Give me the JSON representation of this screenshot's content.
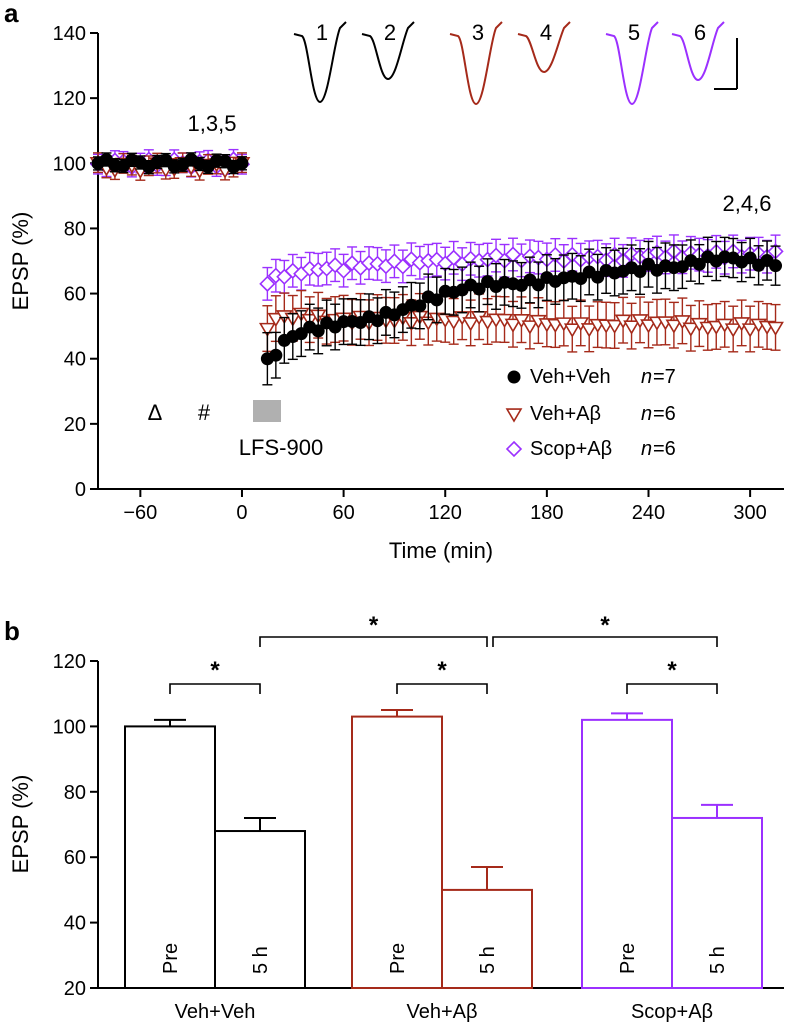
{
  "colors": {
    "vehveh": "#000000",
    "vehab": "#a52a1a",
    "scopab": "#9b30ff",
    "lfs_box": "#b0b0b0"
  },
  "chart_data": [
    {
      "id": "a",
      "type": "scatter",
      "panel_label": "a",
      "xlabel": "Time (min)",
      "ylabel": "EPSP (%)",
      "xlim": [
        -85,
        320
      ],
      "ylim": [
        0,
        140
      ],
      "xticks": [
        -60,
        0,
        60,
        120,
        180,
        240,
        300
      ],
      "xtick_labels": [
        "−60",
        "0",
        "60",
        "120",
        "180",
        "240",
        "300"
      ],
      "yticks": [
        0,
        20,
        40,
        60,
        80,
        100,
        120,
        140
      ],
      "ytick_labels": [
        "0",
        "20",
        "40",
        "60",
        "80",
        "100",
        "120",
        "140"
      ],
      "annotations": {
        "pre_traces": "1,3,5",
        "post_traces": "2,4,6",
        "lfs_label": "LFS-900",
        "delta": "Δ",
        "hash": "#",
        "trace_numbers": [
          "1",
          "2",
          "3",
          "4",
          "5",
          "6"
        ]
      },
      "legend": [
        {
          "label": "Veh+Veh",
          "n": "n",
          "n_value": "=7",
          "marker": "circle"
        },
        {
          "label": "Veh+Aβ",
          "n": "n",
          "n_value": "=6",
          "marker": "triangle-down"
        },
        {
          "label": "Scop+Aβ",
          "n": "n",
          "n_value": "=6",
          "marker": "diamond"
        }
      ],
      "series": [
        {
          "name": "Veh+Veh",
          "marker": "circle",
          "pre": {
            "t_start": -85,
            "t_end": 0,
            "mean": 100,
            "err": 2
          },
          "post_t": [
            15,
            20,
            25,
            30,
            35,
            40,
            50,
            60,
            75,
            90,
            105,
            120,
            135,
            150,
            165,
            180,
            195,
            210,
            225,
            240,
            255,
            270,
            285,
            300,
            315
          ],
          "post_v": [
            39,
            42,
            45,
            47,
            48,
            49,
            50,
            51,
            52,
            54,
            57,
            60,
            62,
            63,
            63,
            64,
            65,
            66,
            67,
            68,
            68,
            70,
            71,
            70,
            69
          ],
          "post_err": [
            8,
            7,
            7,
            7,
            7,
            7,
            7,
            7,
            7,
            7,
            7,
            7,
            7,
            7,
            7,
            7,
            7,
            7,
            7,
            7,
            7,
            6,
            6,
            6,
            6
          ]
        },
        {
          "name": "Veh+Aβ",
          "marker": "triangle-down",
          "pre": {
            "t_start": -85,
            "t_end": 0,
            "mean": 99,
            "err": 3
          },
          "post_t": [
            15,
            20,
            25,
            30,
            35,
            40,
            50,
            60,
            75,
            90,
            105,
            120,
            135,
            150,
            165,
            180,
            195,
            210,
            225,
            240,
            255,
            270,
            285,
            300,
            315
          ],
          "post_v": [
            50,
            52,
            53,
            53,
            53,
            53,
            52,
            52,
            52,
            52,
            52,
            52,
            52,
            52,
            51,
            51,
            50,
            50,
            51,
            51,
            51,
            50,
            50,
            50,
            50
          ],
          "post_err": [
            7,
            7,
            7,
            7,
            7,
            7,
            7,
            7,
            7,
            7,
            7,
            7,
            7,
            7,
            7,
            7,
            7,
            7,
            7,
            7,
            7,
            7,
            7,
            7,
            7
          ]
        },
        {
          "name": "Scop+Aβ",
          "marker": "diamond",
          "pre": {
            "t_start": -85,
            "t_end": 0,
            "mean": 100,
            "err": 3
          },
          "post_t": [
            15,
            20,
            25,
            30,
            35,
            40,
            50,
            60,
            75,
            90,
            105,
            120,
            135,
            150,
            165,
            180,
            195,
            210,
            225,
            240,
            255,
            270,
            285,
            300,
            315
          ],
          "post_v": [
            63,
            65,
            66,
            66,
            67,
            67,
            68,
            68,
            69,
            69,
            70,
            70,
            70,
            71,
            71,
            71,
            71,
            71,
            71,
            72,
            72,
            72,
            72,
            72,
            72
          ],
          "post_err": [
            5,
            5,
            5,
            5,
            5,
            5,
            5,
            5,
            5,
            5,
            5,
            5,
            5,
            5,
            5,
            5,
            5,
            5,
            5,
            5,
            5,
            5,
            5,
            5,
            5
          ]
        }
      ]
    },
    {
      "id": "b",
      "type": "bar",
      "panel_label": "b",
      "ylabel": "EPSP (%)",
      "ylim": [
        20,
        120
      ],
      "yticks": [
        20,
        40,
        60,
        80,
        100,
        120
      ],
      "ytick_labels": [
        "20",
        "40",
        "60",
        "80",
        "100",
        "120"
      ],
      "groups": [
        "Veh+Veh",
        "Veh+Aβ",
        "Scop+Aβ"
      ],
      "bar_labels": [
        "Pre",
        "5 h"
      ],
      "series": [
        {
          "name": "Pre",
          "values": [
            100,
            103,
            102
          ],
          "errors": [
            2,
            2,
            2
          ]
        },
        {
          "name": "5 h",
          "values": [
            68,
            50,
            72
          ],
          "errors": [
            4,
            7,
            4
          ]
        }
      ],
      "significance": [
        {
          "from": "Veh+Veh Pre",
          "to": "Veh+Veh 5 h",
          "label": "*"
        },
        {
          "from": "Veh+Aβ Pre",
          "to": "Veh+Aβ 5 h",
          "label": "*"
        },
        {
          "from": "Scop+Aβ Pre",
          "to": "Scop+Aβ 5 h",
          "label": "*"
        },
        {
          "from": "Veh+Veh 5 h",
          "to": "Veh+Aβ 5 h",
          "label": "*"
        },
        {
          "from": "Veh+Aβ 5 h",
          "to": "Scop+Aβ 5 h",
          "label": "*"
        }
      ]
    }
  ]
}
